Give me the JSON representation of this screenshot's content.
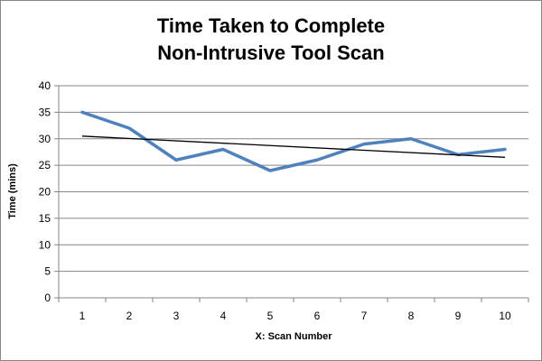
{
  "chart_data": {
    "type": "line",
    "title_lines": [
      "Time Taken to Complete",
      "Non-Intrusive Tool Scan"
    ],
    "xlabel": "X: Scan Number",
    "ylabel": "Time (mins)",
    "x": [
      1,
      2,
      3,
      4,
      5,
      6,
      7,
      8,
      9,
      10
    ],
    "x_tick_labels": [
      "1",
      "2",
      "3",
      "4",
      "5",
      "6",
      "7",
      "8",
      "9",
      "10"
    ],
    "ylim": [
      0,
      40
    ],
    "y_ticks": [
      0,
      5,
      10,
      15,
      20,
      25,
      30,
      35,
      40
    ],
    "y_tick_labels": [
      "0",
      "5",
      "10",
      "15",
      "20",
      "25",
      "30",
      "35",
      "40"
    ],
    "grid": "horizontal",
    "legend": "none",
    "series": [
      {
        "values": [
          35,
          32,
          26,
          28,
          24,
          26,
          29,
          30,
          27,
          28
        ],
        "color": "#4f81bd"
      }
    ],
    "trendline": {
      "type": "linear",
      "start": [
        1,
        30.5
      ],
      "end": [
        10,
        26.5
      ],
      "color": "#000000"
    },
    "colors": {
      "grid": "#868686",
      "axis": "#868686"
    }
  }
}
